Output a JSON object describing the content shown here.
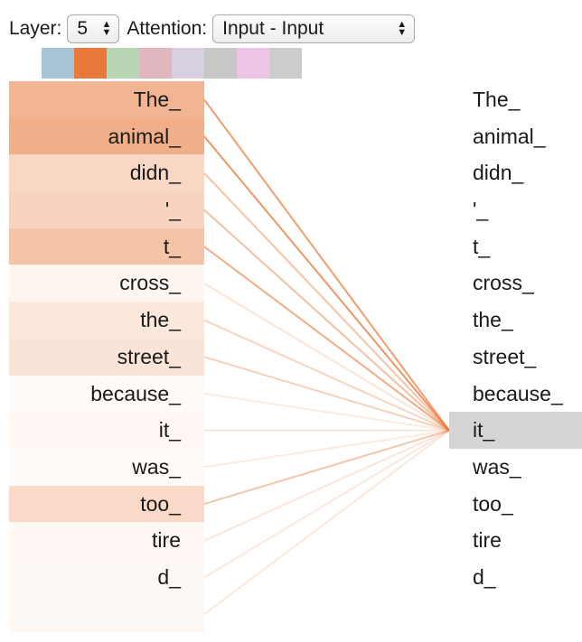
{
  "controls": {
    "layer_label": "Layer:",
    "layer_value": "5",
    "attention_label": "Attention:",
    "attention_value": "Input - Input"
  },
  "head_colors": [
    "#a9c4d6",
    "#e8793a",
    "#b8d6b3",
    "#e2b6bf",
    "#d8cfe0",
    "#c8c8c8",
    "#ecc6e4",
    "#cccccc"
  ],
  "attention_color": "#e8793a",
  "selected_index": 9,
  "tokens": [
    {
      "text": "The_",
      "weight": 0.55
    },
    {
      "text": "animal_",
      "weight": 0.6
    },
    {
      "text": "didn_",
      "weight": 0.3
    },
    {
      "text": "'_",
      "weight": 0.32
    },
    {
      "text": "t_",
      "weight": 0.45
    },
    {
      "text": "cross_",
      "weight": 0.07
    },
    {
      "text": "the_",
      "weight": 0.18
    },
    {
      "text": "street_",
      "weight": 0.2
    },
    {
      "text": "because_",
      "weight": 0.03
    },
    {
      "text": "it_",
      "weight": 0.06
    },
    {
      "text": "was_",
      "weight": 0.03
    },
    {
      "text": "too_",
      "weight": 0.28
    },
    {
      "text": "tire",
      "weight": 0.06
    },
    {
      "text": "d_",
      "weight": 0.05
    },
    {
      "text": "",
      "weight": 0.05
    }
  ]
}
